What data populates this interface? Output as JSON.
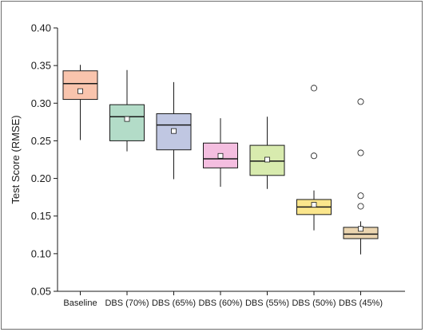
{
  "chart_data": {
    "type": "box",
    "ylabel": "Test Score (RMSE)",
    "xlabel": "",
    "ylim": [
      0.05,
      0.4
    ],
    "yticks": [
      "0.05",
      "0.10",
      "0.15",
      "0.20",
      "0.25",
      "0.30",
      "0.35",
      "0.40"
    ],
    "grid": false,
    "categories": [
      "Baseline",
      "DBS (70%)",
      "DBS (65%)",
      "DBS (60%)",
      "DBS (55%)",
      "DBS (50%)",
      "DBS (45%)"
    ],
    "boxes": [
      {
        "whisker_low": 0.251,
        "q1": 0.305,
        "median": 0.326,
        "q3": 0.343,
        "whisker_high": 0.351,
        "mean": 0.316,
        "outliers": [],
        "color": "#f9c4ad"
      },
      {
        "whisker_low": 0.236,
        "q1": 0.25,
        "median": 0.282,
        "q3": 0.298,
        "whisker_high": 0.344,
        "mean": 0.279,
        "outliers": [],
        "color": "#b3dcc8"
      },
      {
        "whisker_low": 0.199,
        "q1": 0.238,
        "median": 0.271,
        "q3": 0.286,
        "whisker_high": 0.328,
        "mean": 0.263,
        "outliers": [],
        "color": "#c0c7e2"
      },
      {
        "whisker_low": 0.189,
        "q1": 0.214,
        "median": 0.226,
        "q3": 0.247,
        "whisker_high": 0.28,
        "mean": 0.23,
        "outliers": [],
        "color": "#f4bee0"
      },
      {
        "whisker_low": 0.186,
        "q1": 0.204,
        "median": 0.223,
        "q3": 0.244,
        "whisker_high": 0.282,
        "mean": 0.225,
        "outliers": [],
        "color": "#d8ebae"
      },
      {
        "whisker_low": 0.131,
        "q1": 0.152,
        "median": 0.162,
        "q3": 0.172,
        "whisker_high": 0.184,
        "mean": 0.165,
        "outliers": [
          0.32,
          0.23
        ],
        "color": "#fbe68c"
      },
      {
        "whisker_low": 0.099,
        "q1": 0.12,
        "median": 0.126,
        "q3": 0.135,
        "whisker_high": 0.143,
        "mean": 0.133,
        "outliers": [
          0.302,
          0.234,
          0.177,
          0.163
        ],
        "color": "#ebd5b0"
      }
    ]
  }
}
